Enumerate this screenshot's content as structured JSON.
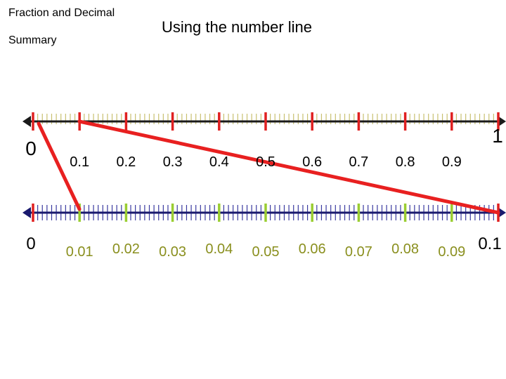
{
  "header": {
    "title_line1": "Fraction and Decimal",
    "title_line2": "Summary",
    "heading": "Using the number line"
  },
  "top_line": {
    "start_label": "0",
    "end_label": "1",
    "tick_labels": [
      "0.1",
      "0.2",
      "0.3",
      "0.4",
      "0.5",
      "0.6",
      "0.7",
      "0.8",
      "0.9"
    ]
  },
  "bottom_line": {
    "start_label": "0",
    "end_label": "0.1",
    "tick_labels": [
      "0.01",
      "0.02",
      "0.03",
      "0.04",
      "0.05",
      "0.06",
      "0.07",
      "0.08",
      "0.09"
    ]
  },
  "colors": {
    "axis": "#1a1a1a",
    "bottom_axis": "#1a1a6e",
    "major_tick": "#e02020",
    "minor_tick_top": "#c8c070",
    "minor_tick_bottom": "#3a3aa0",
    "mid_tick_bottom": "#9acd32",
    "zoom_connector": "#e82020",
    "bottom_label_text": "#8a8f1e"
  }
}
